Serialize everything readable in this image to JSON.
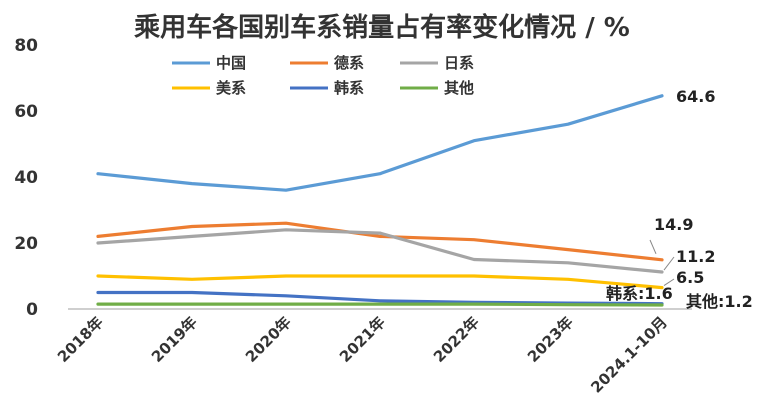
{
  "chart_data": {
    "type": "line",
    "title": "乘用车各国别车系销量占有率变化情况 / %",
    "xlabel": "",
    "ylabel": "",
    "categories": [
      "2018年",
      "2019年",
      "2020年",
      "2021年",
      "2022年",
      "2023年",
      "2024.1-10月"
    ],
    "ylim": [
      0,
      80
    ],
    "yticks": [
      "0",
      "20",
      "40",
      "60",
      "80"
    ],
    "grid": false,
    "legend": "top-left",
    "series": [
      {
        "name": "中国",
        "color": "#5b9bd5",
        "values": [
          41,
          38,
          36,
          41,
          51,
          56,
          64.6
        ]
      },
      {
        "name": "德系",
        "color": "#ed7d31",
        "values": [
          22,
          25,
          26,
          22,
          21,
          18,
          14.9
        ]
      },
      {
        "name": "日系",
        "color": "#a5a5a5",
        "values": [
          20,
          22,
          24,
          23,
          15,
          14,
          11.2
        ]
      },
      {
        "name": "美系",
        "color": "#ffc000",
        "values": [
          10,
          9,
          10,
          10,
          10,
          9,
          6.5
        ]
      },
      {
        "name": "韩系",
        "color": "#4472c4",
        "values": [
          5,
          5,
          4,
          2.5,
          2,
          1.8,
          1.6
        ]
      },
      {
        "name": "其他",
        "color": "#70ad47",
        "values": [
          1.5,
          1.5,
          1.5,
          1.5,
          1.5,
          1.3,
          1.2
        ]
      }
    ],
    "annotations": [
      "64.6",
      "14.9",
      "11.2",
      "6.5",
      "韩系:1.6",
      "其他:1.2"
    ]
  }
}
